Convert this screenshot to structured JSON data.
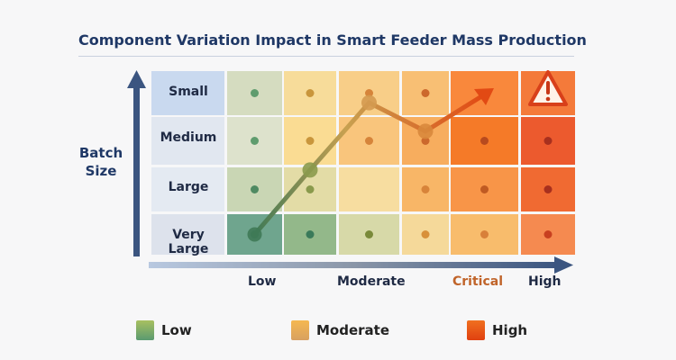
{
  "chart_data": {
    "type": "heatmap",
    "title": "Component Variation Impact in Smart Feeder Mass Production",
    "ylabel": "Batch Size",
    "rows": [
      "Small",
      "Medium",
      "Large",
      "Very Large"
    ],
    "x_tick_labels": [
      "Low",
      "Moderate",
      "Critical",
      "High"
    ],
    "cell_colors": [
      [
        "#d5dcc0",
        "#f7dc9a",
        "#f8ce88",
        "#f8bf74",
        "#f9883c",
        "#f47a3a"
      ],
      [
        "#dde2cc",
        "#fadc93",
        "#f9c57c",
        "#f7ad5e",
        "#f57a28",
        "#ec5a2e"
      ],
      [
        "#c9d6b4",
        "#e3dca6",
        "#f7dda0",
        "#f8b667",
        "#f89548",
        "#f06a32"
      ],
      [
        "#6fa58e",
        "#93b88a",
        "#d7d9a8",
        "#f5d99a",
        "#f8bc6c",
        "#f58a50"
      ]
    ],
    "dot_colors": [
      [
        "#5f9c6e",
        "#c9963c",
        "#d6843a",
        "#cc682c",
        "#b84a1e",
        "#a8301e"
      ],
      [
        "#5f9c6e",
        "#c9963c",
        "#d6843a",
        "#cc682c",
        "#b84a1e",
        "#a8301e"
      ],
      [
        "#4f8a62",
        "#8a9a4c",
        "#f7dda0",
        "#d8843a",
        "#c05a22",
        "#a8301e"
      ],
      [
        "#3a7a5a",
        "#3a7a5a",
        "#7a8a3a",
        "#d8903a",
        "#d8803a",
        "#c84020"
      ]
    ],
    "trend_path_cells": [
      [
        3,
        0
      ],
      [
        2.4,
        1
      ],
      [
        1.8,
        2
      ],
      [
        1.2,
        3
      ]
    ],
    "warning_icon": "warning-triangle-icon",
    "legend": [
      {
        "label": "Low",
        "color": "#7aa85a"
      },
      {
        "label": "Moderate",
        "color": "#f0b050"
      },
      {
        "label": "High",
        "color": "#ec5a1e"
      }
    ],
    "colors": {
      "axis": "#3b5580",
      "title": "#1f3866",
      "critical_label": "#c0642a"
    }
  }
}
